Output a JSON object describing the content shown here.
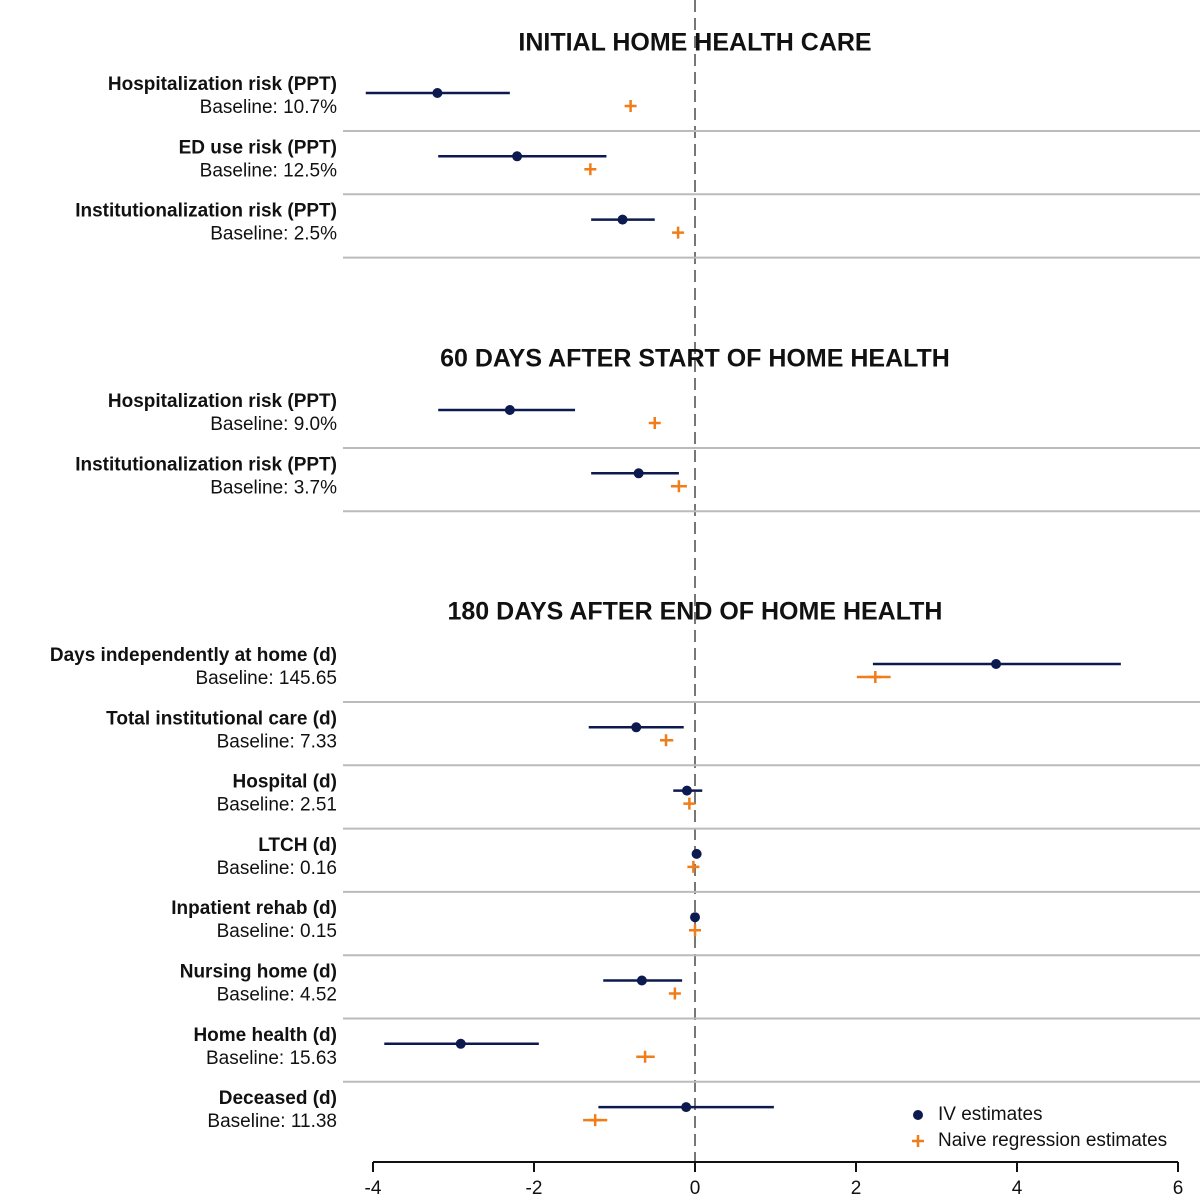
{
  "chart_data": [
    {
      "type": "forest",
      "title": "INITIAL HOME HEALTH CARE",
      "categories": [
        "Hospitalization risk (PPT)",
        "ED use risk (PPT)",
        "Institutionalization risk (PPT)"
      ],
      "baselines": [
        "Baseline: 10.7%",
        "Baseline: 12.5%",
        "Baseline: 2.5%"
      ],
      "series": [
        {
          "color": "#0d1a4f",
          "values": [
            -3.2,
            -2.21,
            -0.9
          ],
          "lower": [
            -4.09,
            -3.19,
            -1.29
          ],
          "upper": [
            -2.3,
            -1.1,
            -0.5
          ]
        },
        {
          "color": "#f07d1a",
          "values": [
            -0.8,
            -1.3,
            -0.21
          ],
          "lower": [
            null,
            null,
            null
          ],
          "upper": [
            null,
            null,
            null
          ]
        }
      ]
    },
    {
      "type": "forest",
      "title": "60 DAYS AFTER START OF HOME HEALTH",
      "categories": [
        "Hospitalization risk (PPT)",
        "Institutionalization risk (PPT)"
      ],
      "baselines": [
        "Baseline: 9.0%",
        "Baseline: 3.7%"
      ],
      "series": [
        {
          "color": "#0d1a4f",
          "values": [
            -2.3,
            -0.7
          ],
          "lower": [
            -3.19,
            -1.29
          ],
          "upper": [
            -1.49,
            -0.2
          ]
        },
        {
          "color": "#f07d1a",
          "values": [
            -0.5,
            -0.2
          ],
          "lower": [
            null,
            -0.3
          ],
          "upper": [
            null,
            -0.1
          ]
        }
      ]
    },
    {
      "type": "forest",
      "title": "180 DAYS AFTER END OF HOME HEALTH",
      "categories": [
        "Days independently at home (d)",
        "Total institutional care (d)",
        "Hospital (d)",
        "LTCH (d)",
        "Inpatient rehab (d)",
        "Nursing home (d)",
        "Home health (d)",
        "Deceased (d)"
      ],
      "baselines": [
        "Baseline: 145.65",
        "Baseline: 7.33",
        "Baseline: 2.51",
        "Baseline: 0.16",
        "Baseline: 0.15",
        "Baseline: 4.52",
        "Baseline: 15.63",
        "Baseline: 11.38"
      ],
      "series": [
        {
          "name": "IV estimates",
          "color": "#0d1a4f",
          "values": [
            3.74,
            -0.73,
            -0.1,
            0.02,
            0.0,
            -0.66,
            -2.91,
            -0.11
          ],
          "lower": [
            2.21,
            -1.32,
            -0.27,
            null,
            null,
            -1.14,
            -3.86,
            -1.2
          ],
          "upper": [
            5.29,
            -0.14,
            0.09,
            null,
            null,
            -0.16,
            -1.94,
            0.98
          ]
        },
        {
          "name": "Naive regression estimates",
          "color": "#f07d1a",
          "values": [
            2.24,
            -0.36,
            -0.07,
            -0.02,
            0.0,
            -0.25,
            -0.62,
            -1.24
          ],
          "lower": [
            2.01,
            -0.43,
            null,
            null,
            null,
            null,
            -0.73,
            -1.39
          ],
          "upper": [
            2.43,
            -0.27,
            null,
            null,
            null,
            null,
            -0.5,
            -1.09
          ]
        }
      ],
      "xlim": [
        -4,
        6
      ],
      "xticks": [
        -4,
        -2,
        0,
        2,
        4,
        6
      ]
    }
  ]
}
